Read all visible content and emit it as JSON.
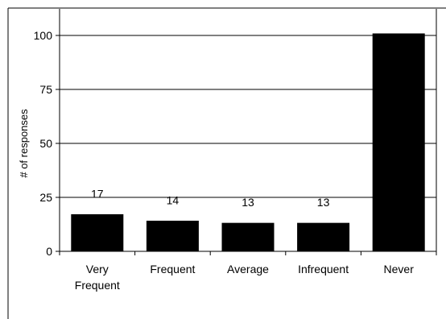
{
  "chart_data": {
    "type": "bar",
    "title": "",
    "xlabel": "",
    "ylabel": "# of responses",
    "categories": [
      [
        "Very",
        "Frequent"
      ],
      [
        "Frequent"
      ],
      [
        "Average"
      ],
      [
        "Infrequent"
      ],
      [
        "Never"
      ]
    ],
    "values": [
      17,
      14,
      13,
      13,
      101
    ],
    "data_labels": [
      "17",
      "14",
      "13",
      "13",
      ""
    ],
    "ylim": [
      0,
      100
    ],
    "yticks": [
      0,
      25,
      50,
      75,
      100
    ],
    "grid": "horizontal",
    "legend": "none",
    "bar_color": "#000000"
  }
}
